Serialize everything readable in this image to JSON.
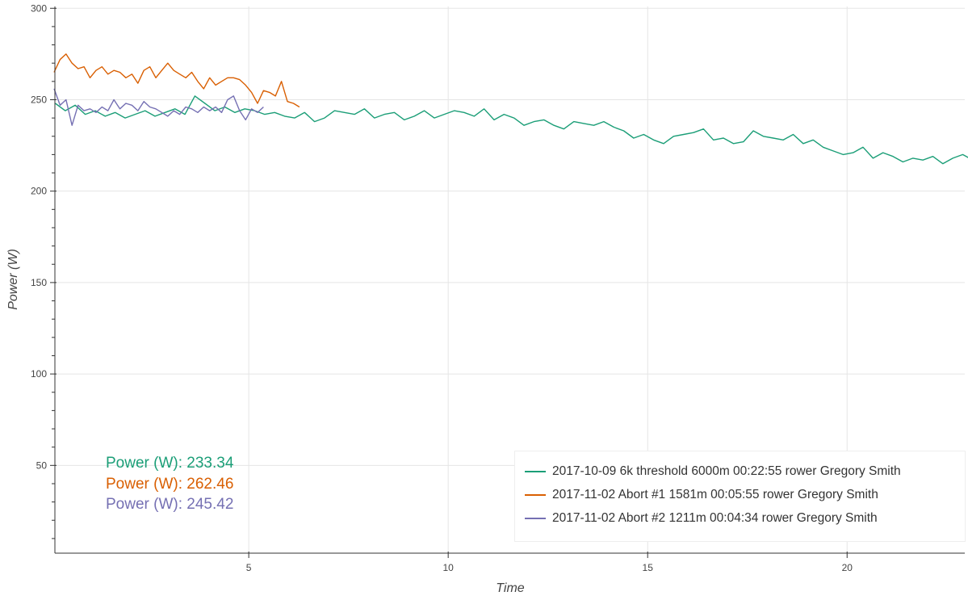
{
  "chart_data": {
    "type": "line",
    "title": "",
    "xlabel": "Time",
    "ylabel": "Power (W)",
    "xlim": [
      0.14,
      22.95
    ],
    "ylim": [
      2,
      301
    ],
    "x_ticks": [
      5,
      10,
      15,
      20
    ],
    "y_ticks": [
      50,
      100,
      150,
      200,
      250,
      300
    ],
    "grid": true,
    "legend_position": "bottom-right",
    "series": [
      {
        "name": "2017-10-09 6k threshold 6000m 00:22:55 rower Gregory Smith",
        "color": "#1b9e77",
        "x_start": 0.15,
        "x_step": 0.25,
        "values": [
          248,
          244,
          247,
          242,
          244,
          241,
          243,
          240,
          242,
          244,
          241,
          243,
          245,
          242,
          252,
          248,
          244,
          246,
          243,
          245,
          244,
          242,
          243,
          241,
          240,
          243,
          238,
          240,
          244,
          243,
          242,
          245,
          240,
          242,
          243,
          239,
          241,
          244,
          240,
          242,
          244,
          243,
          241,
          245,
          239,
          242,
          240,
          236,
          238,
          239,
          236,
          234,
          238,
          237,
          236,
          238,
          235,
          233,
          229,
          231,
          228,
          226,
          230,
          231,
          232,
          234,
          228,
          229,
          226,
          227,
          233,
          230,
          229,
          228,
          231,
          226,
          228,
          224,
          222,
          220,
          221,
          224,
          218,
          221,
          219,
          216,
          218,
          217,
          219,
          215,
          218,
          220,
          217,
          219,
          216,
          218,
          219,
          215,
          221,
          219,
          218,
          217,
          215,
          218,
          220,
          221,
          219,
          218,
          222,
          217,
          219,
          232,
          234,
          229,
          218,
          214,
          219,
          221,
          218,
          220,
          222,
          217,
          214,
          219,
          225,
          232,
          236,
          240,
          244,
          250,
          262,
          278
        ]
      },
      {
        "name": "2017-11-02 Abort #1 1581m 00:05:55 rower Gregory Smith",
        "color": "#d95f02",
        "x_start": 0.12,
        "x_step": 0.15,
        "values": [
          265,
          272,
          275,
          270,
          267,
          268,
          262,
          266,
          268,
          264,
          266,
          265,
          262,
          264,
          259,
          266,
          268,
          262,
          266,
          270,
          266,
          264,
          262,
          265,
          260,
          256,
          262,
          258,
          260,
          262,
          262,
          261,
          258,
          254,
          248,
          255,
          254,
          252,
          260,
          249,
          248,
          246
        ]
      },
      {
        "name": "2017-11-02 Abort #2 1211m 00:04:34 rower Gregory Smith",
        "color": "#7570b3",
        "x_start": 0.12,
        "x_step": 0.15,
        "values": [
          256,
          247,
          250,
          236,
          247,
          244,
          245,
          243,
          246,
          244,
          250,
          245,
          248,
          247,
          244,
          249,
          246,
          245,
          243,
          241,
          244,
          242,
          246,
          245,
          243,
          246,
          244,
          246,
          243,
          250,
          252,
          244,
          239,
          245,
          243,
          246
        ]
      }
    ]
  },
  "hover_readouts": [
    {
      "text": "Power (W): 233.34",
      "color": "#1b9e77"
    },
    {
      "text": "Power (W): 262.46",
      "color": "#d95f02"
    },
    {
      "text": "Power (W): 245.42",
      "color": "#7570b3"
    }
  ]
}
